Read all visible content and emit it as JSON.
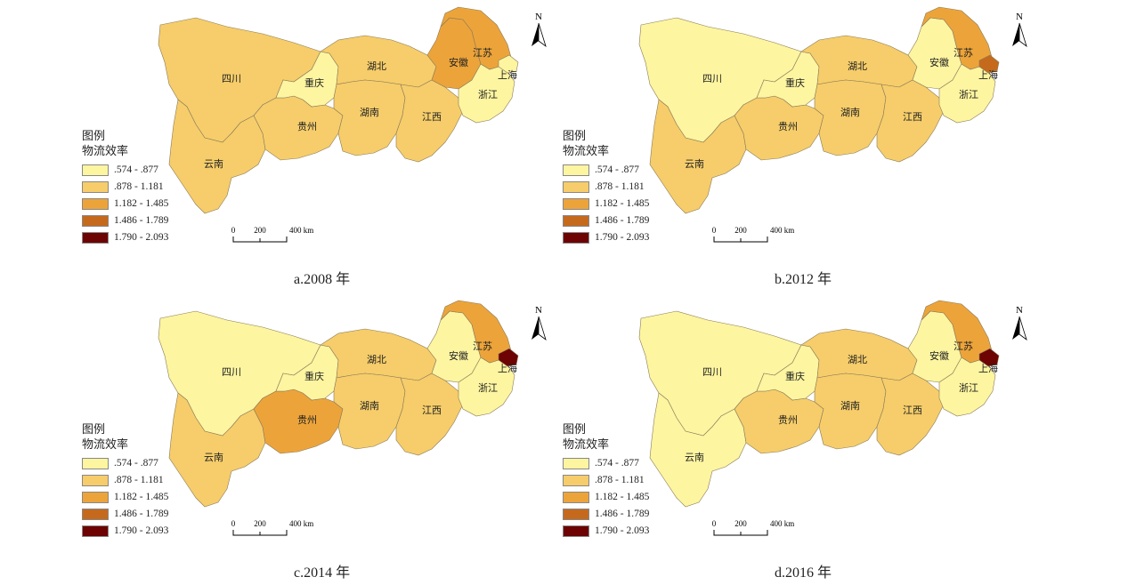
{
  "legend": {
    "title": "图例",
    "subtitle": "物流效率",
    "classes": [
      {
        "label": ".574 - .877",
        "color": "#fdf5a0"
      },
      {
        "label": ".878 - 1.181",
        "color": "#f6cd6a"
      },
      {
        "label": "1.182 - 1.485",
        "color": "#eca43a"
      },
      {
        "label": "1.486 - 1.789",
        "color": "#c56a1c"
      },
      {
        "label": "1.790 - 2.093",
        "color": "#6d0303"
      }
    ]
  },
  "scale_bar": {
    "label_0": "0",
    "label_200": "200",
    "label_400": "400 km"
  },
  "north_label": "N",
  "province_names": {
    "sichuan": "四川",
    "chongqing": "重庆",
    "yunnan": "云南",
    "guizhou": "贵州",
    "hubei": "湖北",
    "hunan": "湖南",
    "jiangxi": "江西",
    "anhui": "安徽",
    "jiangsu": "江苏",
    "zhejiang": "浙江",
    "shanghai": "上海"
  },
  "panels": [
    {
      "caption": "a.2008 年",
      "classes": {
        "sichuan": 1,
        "chongqing": 0,
        "yunnan": 1,
        "guizhou": 1,
        "hubei": 1,
        "hunan": 1,
        "jiangxi": 1,
        "anhui": 2,
        "jiangsu": 2,
        "zhejiang": 0,
        "shanghai": 0
      }
    },
    {
      "caption": "b.2012 年",
      "classes": {
        "sichuan": 0,
        "chongqing": 0,
        "yunnan": 1,
        "guizhou": 1,
        "hubei": 1,
        "hunan": 1,
        "jiangxi": 1,
        "anhui": 0,
        "jiangsu": 2,
        "zhejiang": 0,
        "shanghai": 3
      }
    },
    {
      "caption": "c.2014 年",
      "classes": {
        "sichuan": 0,
        "chongqing": 0,
        "yunnan": 1,
        "guizhou": 2,
        "hubei": 1,
        "hunan": 1,
        "jiangxi": 1,
        "anhui": 0,
        "jiangsu": 2,
        "zhejiang": 0,
        "shanghai": 4
      }
    },
    {
      "caption": "d.2016 年",
      "classes": {
        "sichuan": 0,
        "chongqing": 0,
        "yunnan": 0,
        "guizhou": 1,
        "hubei": 1,
        "hunan": 1,
        "jiangxi": 1,
        "anhui": 0,
        "jiangsu": 2,
        "zhejiang": 0,
        "shanghai": 4
      }
    }
  ]
}
